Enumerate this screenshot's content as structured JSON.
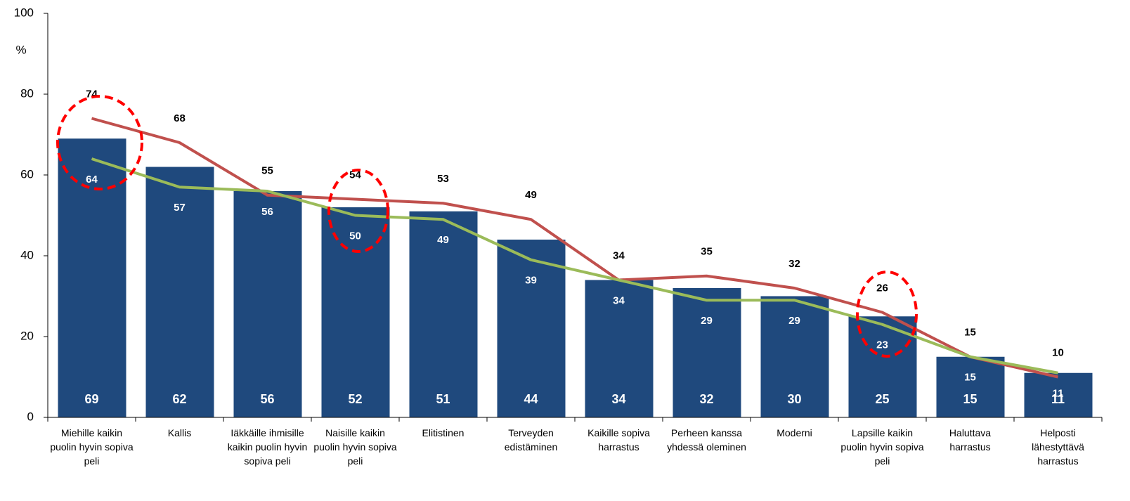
{
  "chart_data": {
    "type": "bar",
    "y_label": "%",
    "categories": [
      "Miehille kaikin puolin hyvin sopiva peli",
      "Kallis",
      "Iäkkäille ihmisille kaikin puolin hyvin sopiva peli",
      "Naisille kaikin puolin hyvin sopiva peli",
      "Elitistinen",
      "Terveyden edistäminen",
      "Kaikille sopiva harrastus",
      "Perheen kanssa yhdessä oleminen",
      "Moderni",
      "Lapsille kaikin puolin hyvin sopiva peli",
      "Haluttava harrastus",
      "Helposti lähestyttävä harrastus"
    ],
    "series": [
      {
        "type": "bar",
        "color": "#1f497d",
        "values": [
          69,
          62,
          56,
          52,
          51,
          44,
          34,
          32,
          30,
          25,
          15,
          11
        ]
      },
      {
        "type": "line",
        "color": "#c0504d",
        "values": [
          74,
          68,
          55,
          54,
          53,
          49,
          34,
          35,
          32,
          26,
          15,
          10
        ]
      },
      {
        "type": "line",
        "color": "#9bbb59",
        "values": [
          64,
          57,
          56,
          50,
          49,
          39,
          34,
          29,
          29,
          23,
          15,
          11
        ]
      }
    ],
    "ylim": [
      0,
      100
    ],
    "yticks": [
      0,
      20,
      40,
      60,
      80,
      100
    ],
    "grid": false
  }
}
